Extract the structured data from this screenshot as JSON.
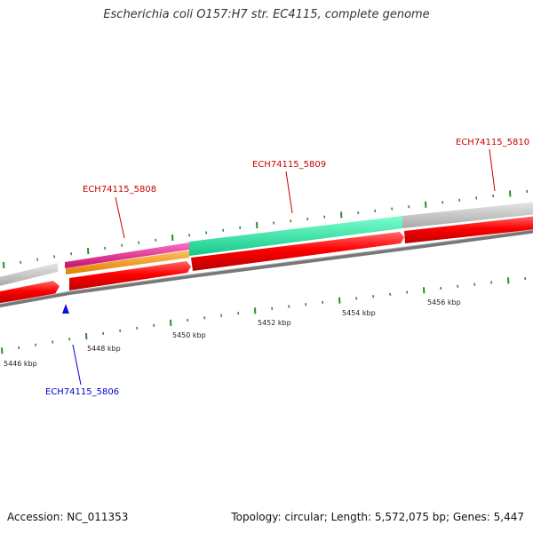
{
  "title": "Escherichia coli O157:H7 str. EC4115, complete genome",
  "accession": "Accession: NC_011353",
  "summary": "Topology: circular; Length: 5,572,075 bp; Genes: 5,447",
  "colors": {
    "background": "#ffffff",
    "tick": "#2e8b2e",
    "backbone": "#888888",
    "forward_label": "#cc0000",
    "reverse_label": "#0000cc",
    "gene": "#ff0000",
    "grey_feature": "#c8c8c8",
    "magenta_feature": "#e0208c",
    "orange_feature": "#ff9900",
    "teal_feature": "#22e6a0"
  },
  "scale_labels": [
    "5446 kbp",
    "5448 kbp",
    "5450 kbp",
    "5452 kbp",
    "5454 kbp",
    "5456 kbp"
  ],
  "gene_labels": [
    {
      "name": "ECH74115_5806",
      "strand": "reverse"
    },
    {
      "name": "ECH74115_5808",
      "strand": "forward"
    },
    {
      "name": "ECH74115_5809",
      "strand": "forward"
    },
    {
      "name": "ECH74115_5810",
      "strand": "forward"
    }
  ]
}
